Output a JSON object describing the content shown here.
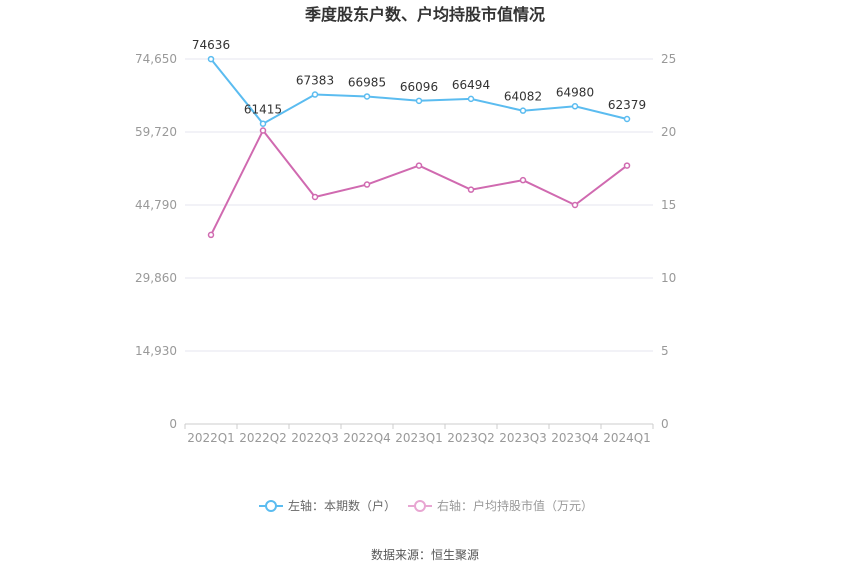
{
  "chart_data": {
    "type": "line",
    "title": "季度股东户数、户均持股市值情况",
    "categories": [
      "2022Q1",
      "2022Q2",
      "2022Q3",
      "2022Q4",
      "2023Q1",
      "2023Q2",
      "2023Q3",
      "2023Q4",
      "2024Q1"
    ],
    "series": [
      {
        "name": "左轴：本期数（户）",
        "axis": "left",
        "color": "#5bbcf0",
        "values": [
          74636,
          61415,
          67383,
          66985,
          66096,
          66494,
          64082,
          64980,
          62379
        ],
        "labels": [
          "74636",
          "61415",
          "67383",
          "66985",
          "66096",
          "66494",
          "64082",
          "64980",
          "62379"
        ]
      },
      {
        "name": "右轴：户均持股市值（万元）",
        "axis": "right",
        "color": "#d06ab0",
        "values": [
          12.95,
          20.1,
          15.55,
          16.4,
          17.7,
          16.05,
          16.7,
          15.0,
          17.7
        ]
      }
    ],
    "left_axis": {
      "min": 0,
      "max": 74650,
      "ticks": [
        0,
        14930,
        29860,
        44790,
        59720,
        74650
      ],
      "tick_labels": [
        "0",
        "14,930",
        "29,860",
        "44,790",
        "59,720",
        "74,650"
      ]
    },
    "right_axis": {
      "min": 0,
      "max": 25,
      "ticks": [
        0,
        5,
        10,
        15,
        20,
        25
      ],
      "tick_labels": [
        "0",
        "5",
        "10",
        "15",
        "20",
        "25"
      ]
    },
    "grid": true,
    "legend_position": "bottom"
  },
  "source": "数据来源：恒生聚源",
  "colors": {
    "grid": "#e6e6ef",
    "axis_text": "#999999",
    "title": "#333333"
  }
}
